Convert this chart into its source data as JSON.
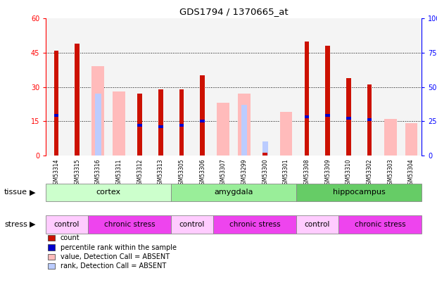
{
  "title": "GDS1794 / 1370665_at",
  "samples": [
    "GSM53314",
    "GSM53315",
    "GSM53316",
    "GSM53311",
    "GSM53312",
    "GSM53313",
    "GSM53305",
    "GSM53306",
    "GSM53307",
    "GSM53299",
    "GSM53300",
    "GSM53301",
    "GSM53308",
    "GSM53309",
    "GSM53310",
    "GSM53302",
    "GSM53303",
    "GSM53304"
  ],
  "count_values": [
    46,
    49,
    0,
    0,
    27,
    29,
    29,
    35,
    0,
    0,
    1,
    0,
    50,
    48,
    34,
    31,
    0,
    0
  ],
  "percentile_values": [
    29,
    0,
    0,
    0,
    22,
    21,
    22,
    25,
    0,
    0,
    0,
    0,
    28,
    29,
    27,
    26,
    0,
    0
  ],
  "absent_value_values": [
    0,
    0,
    39,
    28,
    0,
    0,
    0,
    0,
    23,
    27,
    0,
    19,
    0,
    0,
    0,
    0,
    16,
    14
  ],
  "absent_rank_values": [
    0,
    0,
    27,
    0,
    0,
    0,
    0,
    0,
    0,
    22,
    6,
    0,
    0,
    0,
    0,
    0,
    0,
    0
  ],
  "tissue_groups": [
    {
      "label": "cortex",
      "start": 0,
      "end": 6,
      "color": "#ccffcc"
    },
    {
      "label": "amygdala",
      "start": 6,
      "end": 12,
      "color": "#99ee99"
    },
    {
      "label": "hippocampus",
      "start": 12,
      "end": 18,
      "color": "#66cc66"
    }
  ],
  "stress_groups": [
    {
      "label": "control",
      "start": 0,
      "end": 2,
      "color": "#ffccff"
    },
    {
      "label": "chronic stress",
      "start": 2,
      "end": 6,
      "color": "#ee44ee"
    },
    {
      "label": "control",
      "start": 6,
      "end": 8,
      "color": "#ffccff"
    },
    {
      "label": "chronic stress",
      "start": 8,
      "end": 12,
      "color": "#ee44ee"
    },
    {
      "label": "control",
      "start": 12,
      "end": 14,
      "color": "#ffccff"
    },
    {
      "label": "chronic stress",
      "start": 14,
      "end": 18,
      "color": "#ee44ee"
    }
  ],
  "ylim_left": [
    0,
    60
  ],
  "ylim_right": [
    0,
    100
  ],
  "yticks_left": [
    0,
    15,
    30,
    45,
    60
  ],
  "yticks_right": [
    0,
    25,
    50,
    75,
    100
  ],
  "bar_width": 0.4,
  "count_color": "#cc1100",
  "percentile_color": "#0000cc",
  "absent_value_color": "#ffbbbb",
  "absent_rank_color": "#bbccff",
  "plot_bg_color": "#f4f4f4",
  "tissue_label": "tissue",
  "stress_label": "stress",
  "grid_dotted_at": [
    15,
    30,
    45
  ]
}
